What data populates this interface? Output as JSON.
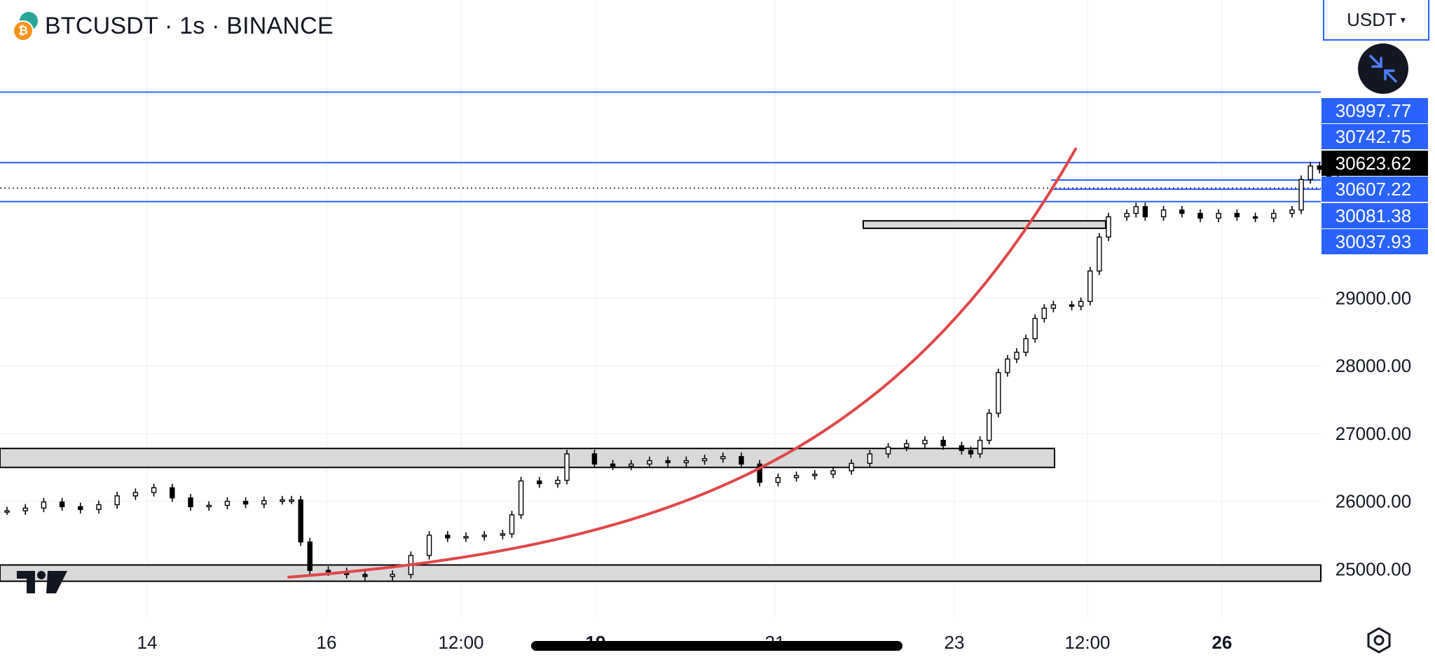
{
  "header": {
    "title": "BTCUSDT · 1s · BINANCE",
    "base_coin_icon": "bitcoin-icon",
    "quote_coin_icon": "tether-icon",
    "bitcoin_color": "#f7931a",
    "tether_color": "#26a69a"
  },
  "currency_selector": {
    "label": "USDT"
  },
  "collapse_button": {
    "icon": "collapse-arrows-icon"
  },
  "settings_button": {
    "icon": "gear-icon"
  },
  "scrollbar": {
    "visible": true
  },
  "chart_data": {
    "type": "candlestick",
    "symbol": "BTCUSDT",
    "interval": "1s",
    "exchange": "BINANCE",
    "x_tick_labels": [
      "14",
      "16",
      "12:00",
      "19",
      "21",
      "23",
      "12:00",
      "26"
    ],
    "y_ticks": [
      25000,
      26000,
      27000,
      28000,
      29000
    ],
    "y_tick_labels": [
      "25000.00",
      "26000.00",
      "27000.00",
      "28000.00",
      "29000.00"
    ],
    "y_range": [
      24300,
      33400
    ],
    "last_price": {
      "value": 30623.62,
      "label": "30623.62"
    },
    "price_tags": [
      {
        "value": 30997.77,
        "label": "30997.77"
      },
      {
        "value": 30742.75,
        "label": "30742.75"
      },
      {
        "value": 30607.22,
        "label": "30607.22"
      },
      {
        "value": 30081.38,
        "label": "30081.38"
      },
      {
        "value": 30037.93,
        "label": "30037.93"
      }
    ],
    "horizontal_lines": [
      32040,
      31000,
      30425
    ],
    "zones": [
      {
        "from": 24820,
        "to": 25060
      },
      {
        "from": 26500,
        "to": 26780
      },
      {
        "from": 30030,
        "to": 30140
      }
    ],
    "trend_curve": "exponential",
    "colors": {
      "candles": "#000000",
      "trend_curve": "#e04646",
      "level_lines": "#2962ff",
      "price_tag_background": "#2962ff",
      "last_price_background": "#000000",
      "zone_fill": "#d9d9d9"
    },
    "series": [
      {
        "name": "",
        "points": [
          [
            0,
            25860
          ],
          [
            0.1,
            25900
          ],
          [
            0.2,
            25990
          ],
          [
            0.3,
            25920
          ],
          [
            0.4,
            25880
          ],
          [
            0.5,
            25950
          ],
          [
            0.6,
            26080
          ],
          [
            0.7,
            26130
          ],
          [
            0.8,
            26200
          ],
          [
            0.9,
            26050
          ],
          [
            1.0,
            25920
          ],
          [
            1.1,
            25940
          ],
          [
            1.2,
            26000
          ],
          [
            1.3,
            25960
          ],
          [
            1.4,
            26010
          ],
          [
            1.5,
            26020
          ],
          [
            1.55,
            26020
          ],
          [
            1.6,
            25400
          ],
          [
            1.65,
            24980
          ],
          [
            1.75,
            24960
          ],
          [
            1.85,
            24920
          ],
          [
            1.95,
            24890
          ],
          [
            2.1,
            24920
          ],
          [
            2.2,
            25200
          ],
          [
            2.3,
            25500
          ],
          [
            2.4,
            25460
          ],
          [
            2.5,
            25480
          ],
          [
            2.6,
            25500
          ],
          [
            2.7,
            25520
          ],
          [
            2.75,
            25800
          ],
          [
            2.8,
            26300
          ],
          [
            2.9,
            26260
          ],
          [
            3.0,
            26310
          ],
          [
            3.05,
            26700
          ],
          [
            3.2,
            26550
          ],
          [
            3.3,
            26520
          ],
          [
            3.4,
            26550
          ],
          [
            3.5,
            26600
          ],
          [
            3.6,
            26570
          ],
          [
            3.7,
            26600
          ],
          [
            3.8,
            26630
          ],
          [
            3.9,
            26660
          ],
          [
            4.0,
            26550
          ],
          [
            4.1,
            26280
          ],
          [
            4.2,
            26350
          ],
          [
            4.3,
            26380
          ],
          [
            4.4,
            26400
          ],
          [
            4.5,
            26450
          ],
          [
            4.6,
            26560
          ],
          [
            4.7,
            26700
          ],
          [
            4.8,
            26800
          ],
          [
            4.9,
            26850
          ],
          [
            5.0,
            26900
          ],
          [
            5.1,
            26820
          ],
          [
            5.2,
            26750
          ],
          [
            5.25,
            26700
          ],
          [
            5.3,
            26900
          ],
          [
            5.35,
            27300
          ],
          [
            5.4,
            27900
          ],
          [
            5.45,
            28100
          ],
          [
            5.5,
            28200
          ],
          [
            5.55,
            28400
          ],
          [
            5.6,
            28700
          ],
          [
            5.65,
            28850
          ],
          [
            5.7,
            28900
          ],
          [
            5.8,
            28880
          ],
          [
            5.85,
            28950
          ],
          [
            5.9,
            29400
          ],
          [
            5.95,
            29900
          ],
          [
            6.0,
            30200
          ],
          [
            6.1,
            30250
          ],
          [
            6.15,
            30350
          ],
          [
            6.2,
            30200
          ],
          [
            6.3,
            30300
          ],
          [
            6.4,
            30250
          ],
          [
            6.5,
            30180
          ],
          [
            6.6,
            30250
          ],
          [
            6.7,
            30200
          ],
          [
            6.8,
            30180
          ],
          [
            6.9,
            30250
          ],
          [
            7.0,
            30300
          ],
          [
            7.05,
            30750
          ],
          [
            7.1,
            30950
          ],
          [
            7.15,
            30900
          ],
          [
            7.2,
            30780
          ],
          [
            7.25,
            30650
          ],
          [
            7.3,
            30620
          ]
        ]
      }
    ]
  }
}
